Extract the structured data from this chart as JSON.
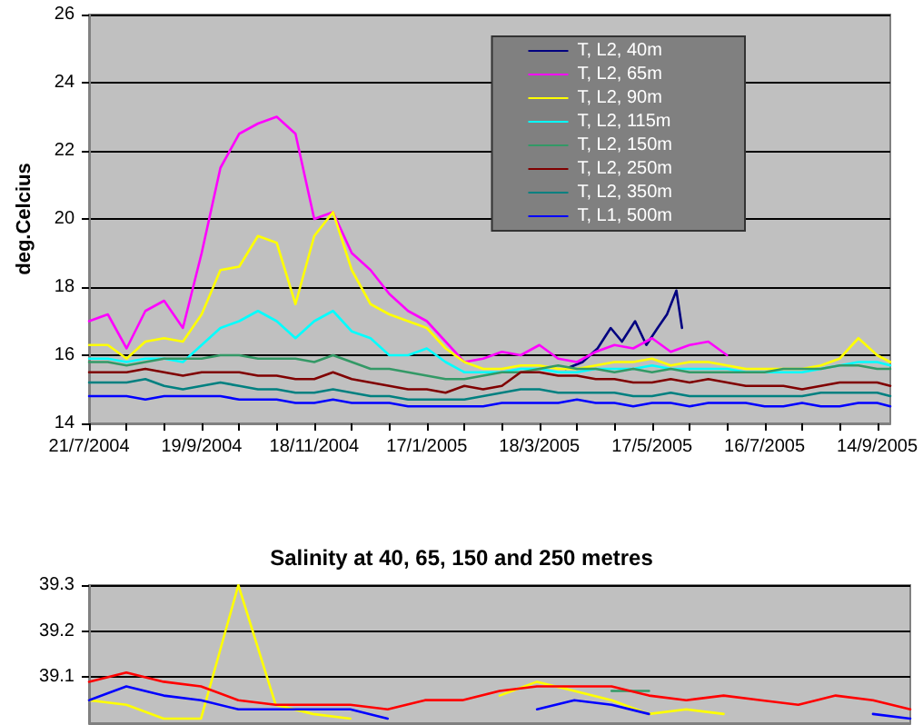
{
  "chart_data": [
    {
      "type": "line",
      "ylabel": "deg.Celcius",
      "legend": "top right",
      "grid": "y",
      "marker": "none",
      "line_style": "solid",
      "xlim": [
        "2004-07-21",
        "2005-09-21"
      ],
      "ylim": [
        14,
        26
      ],
      "yticks": [
        14,
        16,
        18,
        20,
        22,
        24,
        26
      ],
      "xticks": [
        {
          "value": "2004-07-21",
          "label": "21/7/2004"
        },
        {
          "value": "2004-08-10",
          "label": null
        },
        {
          "value": "2004-08-30",
          "label": null
        },
        {
          "value": "2004-09-19",
          "label": "19/9/2004"
        },
        {
          "value": "2004-10-09",
          "label": null
        },
        {
          "value": "2004-10-29",
          "label": null
        },
        {
          "value": "2004-11-18",
          "label": "18/11/2004"
        },
        {
          "value": "2004-12-08",
          "label": null
        },
        {
          "value": "2004-12-28",
          "label": null
        },
        {
          "value": "2005-01-17",
          "label": "17/1/2005"
        },
        {
          "value": "2005-02-06",
          "label": null
        },
        {
          "value": "2005-02-26",
          "label": null
        },
        {
          "value": "2005-03-18",
          "label": "18/3/2005"
        },
        {
          "value": "2005-04-07",
          "label": null
        },
        {
          "value": "2005-04-27",
          "label": null
        },
        {
          "value": "2005-05-17",
          "label": "17/5/2005"
        },
        {
          "value": "2005-06-06",
          "label": null
        },
        {
          "value": "2005-06-26",
          "label": null
        },
        {
          "value": "2005-07-16",
          "label": "16/7/2005"
        },
        {
          "value": "2005-08-05",
          "label": null
        },
        {
          "value": "2005-08-25",
          "label": null
        },
        {
          "value": "2005-09-14",
          "label": "14/9/2005"
        }
      ],
      "x": [
        "2004-07-21",
        "2004-07-31",
        "2004-08-10",
        "2004-08-20",
        "2004-08-30",
        "2004-09-09",
        "2004-09-19",
        "2004-09-29",
        "2004-10-09",
        "2004-10-19",
        "2004-10-29",
        "2004-11-08",
        "2004-11-18",
        "2004-11-28",
        "2004-12-08",
        "2004-12-18",
        "2004-12-28",
        "2005-01-07",
        "2005-01-17",
        "2005-01-27",
        "2005-02-06",
        "2005-02-16",
        "2005-02-26",
        "2005-03-08",
        "2005-03-18",
        "2005-03-28",
        "2005-04-07",
        "2005-04-17",
        "2005-04-27",
        "2005-05-07",
        "2005-05-17",
        "2005-05-27",
        "2005-06-06",
        "2005-06-16",
        "2005-06-26",
        "2005-07-06",
        "2005-07-16",
        "2005-07-26",
        "2005-08-05",
        "2005-08-15",
        "2005-08-25",
        "2005-09-04",
        "2005-09-14",
        "2005-09-21"
      ],
      "series": [
        {
          "name": "T, L2, 40m",
          "color": "#000080",
          "x": [
            "2005-04-01",
            "2005-04-10",
            "2005-04-18",
            "2005-04-25",
            "2005-05-01",
            "2005-05-08",
            "2005-05-14",
            "2005-05-20",
            "2005-05-25",
            "2005-05-30",
            "2005-06-02"
          ],
          "values": [
            15.6,
            15.8,
            16.2,
            16.8,
            16.4,
            17.0,
            16.3,
            16.8,
            17.2,
            17.9,
            16.8
          ]
        },
        {
          "name": "T, L2, 65m",
          "color": "#ff00ff",
          "values": [
            17.0,
            17.2,
            16.2,
            17.3,
            17.6,
            16.8,
            19.0,
            21.5,
            22.5,
            22.8,
            23.0,
            22.5,
            20.0,
            20.2,
            19.0,
            18.5,
            17.8,
            17.3,
            17.0,
            16.4,
            15.8,
            15.9,
            16.1,
            16.0,
            16.3,
            15.9,
            15.8,
            16.1,
            16.3,
            16.2,
            16.5,
            16.1,
            16.3,
            16.4,
            16.0,
            null,
            null,
            null,
            null,
            null,
            null,
            null,
            null,
            null
          ]
        },
        {
          "name": "T, L2, 90m",
          "color": "#ffff00",
          "values": [
            16.3,
            16.3,
            15.9,
            16.4,
            16.5,
            16.4,
            17.2,
            18.5,
            18.6,
            19.5,
            19.3,
            17.5,
            19.5,
            20.2,
            18.5,
            17.5,
            17.2,
            17.0,
            16.8,
            16.2,
            15.8,
            15.6,
            15.6,
            15.7,
            15.7,
            15.6,
            15.6,
            15.7,
            15.8,
            15.8,
            15.9,
            15.7,
            15.8,
            15.8,
            15.7,
            15.6,
            15.6,
            15.6,
            15.6,
            15.7,
            15.9,
            16.5,
            16.0,
            15.8
          ]
        },
        {
          "name": "T, L2, 115m",
          "color": "#00ffff",
          "values": [
            15.9,
            15.9,
            15.8,
            15.9,
            15.9,
            15.8,
            16.3,
            16.8,
            17.0,
            17.3,
            17.0,
            16.5,
            17.0,
            17.3,
            16.7,
            16.5,
            16.0,
            16.0,
            16.2,
            15.8,
            15.5,
            15.5,
            15.5,
            15.6,
            15.6,
            15.5,
            15.5,
            15.6,
            15.6,
            15.6,
            15.7,
            15.6,
            15.6,
            15.6,
            15.6,
            15.5,
            15.5,
            15.5,
            15.5,
            15.6,
            15.7,
            15.8,
            15.8,
            15.7
          ]
        },
        {
          "name": "T, L2, 150m",
          "color": "#339966",
          "values": [
            15.8,
            15.8,
            15.7,
            15.8,
            15.9,
            15.9,
            15.9,
            16.0,
            16.0,
            15.9,
            15.9,
            15.9,
            15.8,
            16.0,
            15.8,
            15.6,
            15.6,
            15.5,
            15.4,
            15.3,
            15.3,
            15.4,
            15.5,
            15.5,
            15.6,
            15.7,
            15.6,
            15.6,
            15.5,
            15.6,
            15.5,
            15.6,
            15.5,
            15.5,
            15.5,
            15.5,
            15.5,
            15.6,
            15.6,
            15.6,
            15.7,
            15.7,
            15.6,
            15.6
          ]
        },
        {
          "name": "T, L2, 250m",
          "color": "#800000",
          "values": [
            15.5,
            15.5,
            15.5,
            15.6,
            15.5,
            15.4,
            15.5,
            15.5,
            15.5,
            15.4,
            15.4,
            15.3,
            15.3,
            15.5,
            15.3,
            15.2,
            15.1,
            15.0,
            15.0,
            14.9,
            15.1,
            15.0,
            15.1,
            15.5,
            15.5,
            15.4,
            15.4,
            15.3,
            15.3,
            15.2,
            15.2,
            15.3,
            15.2,
            15.3,
            15.2,
            15.1,
            15.1,
            15.1,
            15.0,
            15.1,
            15.2,
            15.2,
            15.2,
            15.1
          ]
        },
        {
          "name": "T, L2, 350m",
          "color": "#008080",
          "values": [
            15.2,
            15.2,
            15.2,
            15.3,
            15.1,
            15.0,
            15.1,
            15.2,
            15.1,
            15.0,
            15.0,
            14.9,
            14.9,
            15.0,
            14.9,
            14.8,
            14.8,
            14.7,
            14.7,
            14.7,
            14.7,
            14.8,
            14.9,
            15.0,
            15.0,
            14.9,
            14.9,
            14.9,
            14.9,
            14.8,
            14.8,
            14.9,
            14.8,
            14.8,
            14.8,
            14.8,
            14.8,
            14.8,
            14.8,
            14.9,
            14.9,
            14.9,
            14.9,
            14.8
          ]
        },
        {
          "name": "T, L1, 500m",
          "color": "#0000ff",
          "values": [
            14.8,
            14.8,
            14.8,
            14.7,
            14.8,
            14.8,
            14.8,
            14.8,
            14.7,
            14.7,
            14.7,
            14.6,
            14.6,
            14.7,
            14.6,
            14.6,
            14.6,
            14.5,
            14.5,
            14.5,
            14.5,
            14.5,
            14.6,
            14.6,
            14.6,
            14.6,
            14.7,
            14.6,
            14.6,
            14.5,
            14.6,
            14.6,
            14.5,
            14.6,
            14.6,
            14.6,
            14.5,
            14.5,
            14.6,
            14.5,
            14.5,
            14.6,
            14.6,
            14.5
          ]
        }
      ]
    },
    {
      "type": "line",
      "title": "Salinity at 40, 65, 150 and 250 metres",
      "grid": "y",
      "marker": "none",
      "line_style": "solid",
      "tick_labels": "y",
      "ylim": [
        39.0,
        39.3
      ],
      "yticks": [
        39.1,
        39.2,
        39.3
      ],
      "categories": [
        null,
        null,
        null,
        null,
        null,
        null,
        null,
        null,
        null,
        null,
        null,
        null,
        null,
        null,
        null,
        null,
        null,
        null,
        null,
        null,
        null,
        null,
        null
      ],
      "series": [
        {
          "color": "#339966",
          "values": [
            null,
            null,
            null,
            null,
            null,
            null,
            null,
            null,
            null,
            null,
            null,
            null,
            null,
            null,
            39.07,
            39.07,
            null,
            null,
            null,
            null,
            null,
            null,
            null
          ]
        },
        {
          "color": "#ffff00",
          "values": [
            39.05,
            39.04,
            39.01,
            39.01,
            39.3,
            39.04,
            39.02,
            39.01,
            null,
            null,
            null,
            39.06,
            39.09,
            39.07,
            39.05,
            39.02,
            39.03,
            39.02,
            null,
            null,
            null,
            null,
            null
          ]
        },
        {
          "color": "#ff0000",
          "values": [
            39.09,
            39.11,
            39.09,
            39.08,
            39.05,
            39.04,
            39.04,
            39.04,
            39.03,
            39.05,
            39.05,
            39.07,
            39.08,
            39.08,
            39.08,
            39.06,
            39.05,
            39.06,
            39.05,
            39.04,
            39.06,
            39.05,
            39.03
          ]
        },
        {
          "color": "#0000ff",
          "values": [
            39.05,
            39.08,
            39.06,
            39.05,
            39.03,
            39.03,
            39.03,
            39.03,
            39.01,
            null,
            null,
            null,
            39.03,
            39.05,
            39.04,
            39.02,
            null,
            null,
            null,
            null,
            null,
            39.02,
            39.01
          ]
        }
      ]
    }
  ]
}
